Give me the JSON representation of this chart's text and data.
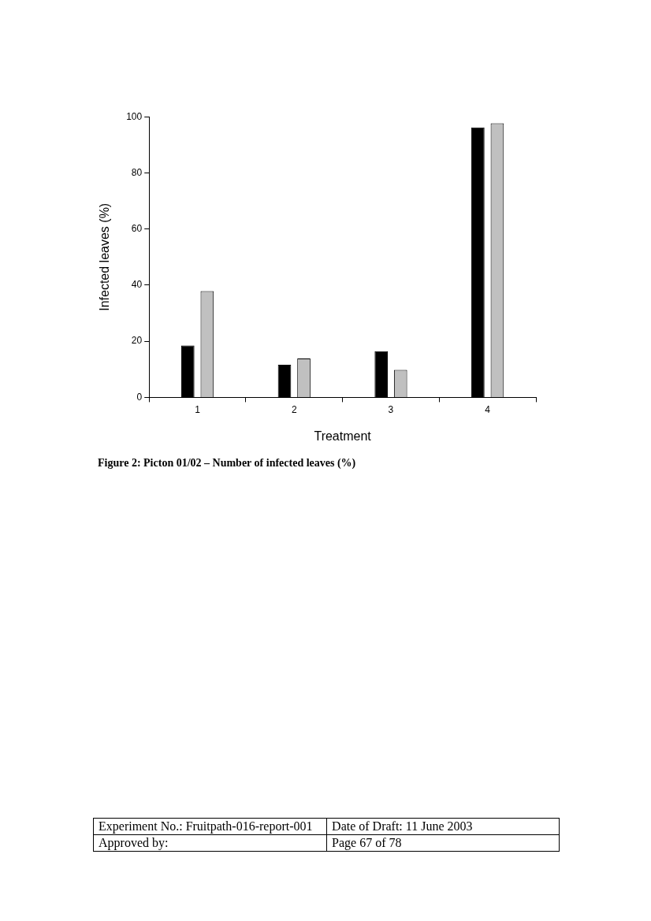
{
  "chart_data": {
    "type": "bar",
    "title": "Figure 2:  Picton 01/02 – Number of infected leaves (%)",
    "xlabel": "Treatment",
    "ylabel": "Infected leaves (%)",
    "categories": [
      "1",
      "2",
      "3",
      "4"
    ],
    "series": [
      {
        "color": "#000000",
        "values": [
          18.5,
          11.6,
          16.5,
          96.2
        ]
      },
      {
        "color": "#c0c0c0",
        "values": [
          37.9,
          13.9,
          9.8,
          97.7
        ]
      }
    ],
    "ylim": [
      0,
      100
    ],
    "yticks": [
      0,
      20,
      40,
      60,
      80,
      100
    ],
    "grid": false,
    "legend": false,
    "annotations": [
      "Experiment    No.:    Fruitpath-016-report-001",
      "Date of Draft: 11 June 2003",
      "Approved by:",
      "Page 67 of 78"
    ]
  }
}
